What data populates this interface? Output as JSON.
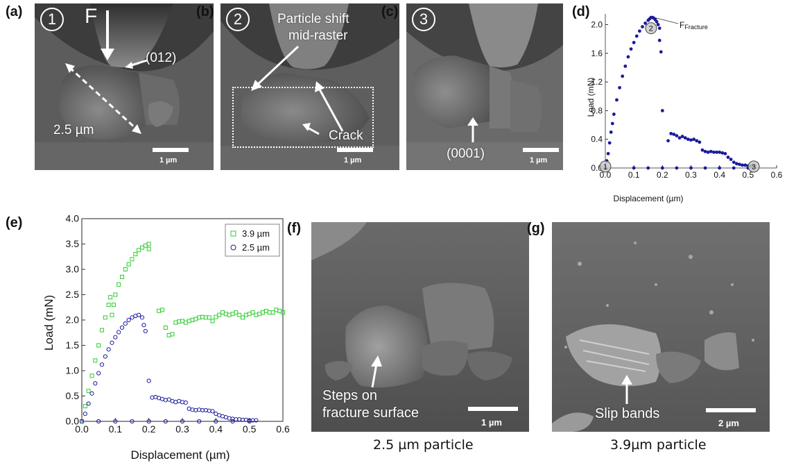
{
  "panels": {
    "a": {
      "label": "(a)",
      "circle": "1",
      "force": "F",
      "plane": "(012)",
      "size": "2.5 µm",
      "scale": "1 µm"
    },
    "b": {
      "label": "(b)",
      "circle": "2",
      "shift_line1": "Particle shift",
      "shift_line2": "mid-raster",
      "crack": "Crack",
      "scale": "1 µm"
    },
    "c": {
      "label": "(c)",
      "circle": "3",
      "plane": "(0001)",
      "scale": "1 µm"
    },
    "d": {
      "label": "(d)",
      "fracture_main": "F",
      "fracture_sub": "Fracture",
      "markers": [
        "1",
        "2",
        "3"
      ]
    },
    "e": {
      "label": "(e)"
    },
    "f": {
      "label": "(f)",
      "steps_line1": "Steps on",
      "steps_line2": "fracture surface",
      "scale": "1 µm",
      "caption": "2.5 µm particle"
    },
    "g": {
      "label": "(g)",
      "slip": "Slip bands",
      "scale": "2 µm",
      "caption": "3.9µm particle"
    }
  },
  "chart_data": [
    {
      "panel": "d",
      "type": "scatter",
      "xlabel": "Displacement (µm)",
      "ylabel": "Load (mN)",
      "xlim": [
        0.0,
        0.6
      ],
      "ylim": [
        0.0,
        2.15
      ],
      "xticks": [
        "0.0",
        "0.1",
        "0.2",
        "0.3",
        "0.4",
        "0.5",
        "0.6"
      ],
      "yticks": [
        "0.0",
        "0.4",
        "0.8",
        "1.2",
        "1.6",
        "2.0"
      ],
      "color": "#1a1a9e",
      "series": [
        {
          "x": [
            0.0,
            0.005,
            0.01,
            0.015,
            0.02,
            0.025,
            0.03,
            0.04,
            0.05,
            0.06,
            0.07,
            0.08,
            0.09,
            0.1,
            0.11,
            0.12,
            0.13,
            0.14,
            0.15,
            0.155,
            0.16,
            0.165,
            0.17,
            0.175,
            0.18,
            0.185,
            0.19,
            0.19,
            0.195,
            0.2,
            0.22,
            0.23,
            0.24,
            0.25,
            0.26,
            0.27,
            0.28,
            0.29,
            0.3,
            0.31,
            0.32,
            0.33,
            0.34,
            0.35,
            0.36,
            0.37,
            0.38,
            0.39,
            0.4,
            0.41,
            0.42,
            0.43,
            0.44,
            0.45,
            0.46,
            0.47,
            0.48,
            0.49,
            0.5,
            0.51,
            0.52,
            0.1,
            0.15,
            0.2,
            0.25,
            0.3,
            0.35,
            0.4,
            0.45,
            0.5
          ],
          "y": [
            0.0,
            0.1,
            0.2,
            0.35,
            0.5,
            0.62,
            0.75,
            0.95,
            1.12,
            1.28,
            1.42,
            1.55,
            1.66,
            1.75,
            1.84,
            1.91,
            1.97,
            2.02,
            2.06,
            2.08,
            2.1,
            2.1,
            2.09,
            2.07,
            2.04,
            2.0,
            1.95,
            1.78,
            1.62,
            0.8,
            0.38,
            0.48,
            0.47,
            0.45,
            0.42,
            0.44,
            0.42,
            0.4,
            0.39,
            0.4,
            0.38,
            0.36,
            0.25,
            0.23,
            0.22,
            0.23,
            0.22,
            0.22,
            0.22,
            0.21,
            0.2,
            0.15,
            0.12,
            0.08,
            0.06,
            0.05,
            0.04,
            0.04,
            0.03,
            0.03,
            0.02,
            0.0,
            0.0,
            0.0,
            0.0,
            0.0,
            0.0,
            0.0,
            0.0,
            0.0
          ]
        }
      ]
    },
    {
      "panel": "e",
      "type": "scatter",
      "xlabel": "Displacement (µm)",
      "ylabel": "Load (mN)",
      "xlim": [
        0.0,
        0.6
      ],
      "ylim": [
        0.0,
        4.0
      ],
      "xticks": [
        "0.0",
        "0.1",
        "0.2",
        "0.3",
        "0.4",
        "0.5",
        "0.6"
      ],
      "yticks": [
        "0.0",
        "0.5",
        "1.0",
        "1.5",
        "2.0",
        "2.5",
        "3.0",
        "3.5",
        "4.0"
      ],
      "legend": "top-right",
      "series": [
        {
          "name": "3.9 µm",
          "color": "#2ecc2e",
          "marker": "square",
          "x": [
            0.0,
            0.01,
            0.02,
            0.03,
            0.04,
            0.05,
            0.06,
            0.07,
            0.08,
            0.085,
            0.09,
            0.095,
            0.1,
            0.11,
            0.12,
            0.13,
            0.14,
            0.15,
            0.16,
            0.17,
            0.18,
            0.19,
            0.2,
            0.2,
            0.23,
            0.24,
            0.25,
            0.26,
            0.27,
            0.28,
            0.29,
            0.3,
            0.31,
            0.32,
            0.33,
            0.34,
            0.35,
            0.36,
            0.37,
            0.38,
            0.39,
            0.4,
            0.41,
            0.42,
            0.43,
            0.44,
            0.45,
            0.46,
            0.47,
            0.48,
            0.49,
            0.5,
            0.51,
            0.52,
            0.53,
            0.54,
            0.55,
            0.56,
            0.57,
            0.58,
            0.59,
            0.6
          ],
          "y": [
            0.0,
            0.3,
            0.6,
            0.9,
            1.2,
            1.5,
            1.8,
            2.05,
            2.3,
            2.45,
            2.1,
            2.3,
            2.5,
            2.7,
            2.85,
            3.0,
            3.1,
            3.2,
            3.3,
            3.38,
            3.43,
            3.47,
            3.5,
            3.4,
            2.18,
            2.2,
            1.85,
            1.7,
            1.72,
            1.95,
            1.97,
            1.98,
            1.95,
            1.98,
            2.0,
            2.02,
            2.05,
            2.06,
            2.05,
            2.05,
            1.98,
            2.06,
            2.1,
            2.15,
            2.12,
            2.1,
            2.12,
            2.15,
            2.1,
            2.05,
            2.1,
            2.12,
            2.15,
            2.1,
            2.12,
            2.15,
            2.18,
            2.15,
            2.15,
            2.2,
            2.18,
            2.15
          ]
        },
        {
          "name": "2.5 µm",
          "color": "#1a1a9e",
          "marker": "circle",
          "x": [
            0.0,
            0.01,
            0.02,
            0.03,
            0.04,
            0.05,
            0.06,
            0.07,
            0.08,
            0.09,
            0.1,
            0.11,
            0.12,
            0.13,
            0.14,
            0.15,
            0.16,
            0.17,
            0.18,
            0.185,
            0.19,
            0.2,
            0.21,
            0.22,
            0.23,
            0.24,
            0.25,
            0.26,
            0.27,
            0.28,
            0.29,
            0.3,
            0.31,
            0.32,
            0.33,
            0.34,
            0.35,
            0.36,
            0.37,
            0.38,
            0.39,
            0.4,
            0.41,
            0.42,
            0.43,
            0.44,
            0.45,
            0.46,
            0.47,
            0.48,
            0.49,
            0.5,
            0.51,
            0.52,
            0.05,
            0.1,
            0.15,
            0.2,
            0.25,
            0.3,
            0.35,
            0.4,
            0.45,
            0.5
          ],
          "y": [
            0.0,
            0.15,
            0.35,
            0.55,
            0.75,
            0.95,
            1.12,
            1.28,
            1.42,
            1.55,
            1.66,
            1.76,
            1.85,
            1.93,
            2.0,
            2.05,
            2.08,
            2.1,
            2.05,
            1.9,
            1.78,
            0.8,
            0.47,
            0.48,
            0.46,
            0.44,
            0.42,
            0.43,
            0.4,
            0.38,
            0.4,
            0.38,
            0.37,
            0.25,
            0.23,
            0.22,
            0.23,
            0.22,
            0.22,
            0.21,
            0.2,
            0.15,
            0.12,
            0.1,
            0.08,
            0.06,
            0.05,
            0.04,
            0.04,
            0.03,
            0.03,
            0.02,
            0.02,
            0.02,
            0.0,
            0.0,
            0.0,
            0.0,
            0.0,
            0.0,
            0.0,
            0.0,
            0.0,
            0.0
          ]
        }
      ]
    }
  ]
}
